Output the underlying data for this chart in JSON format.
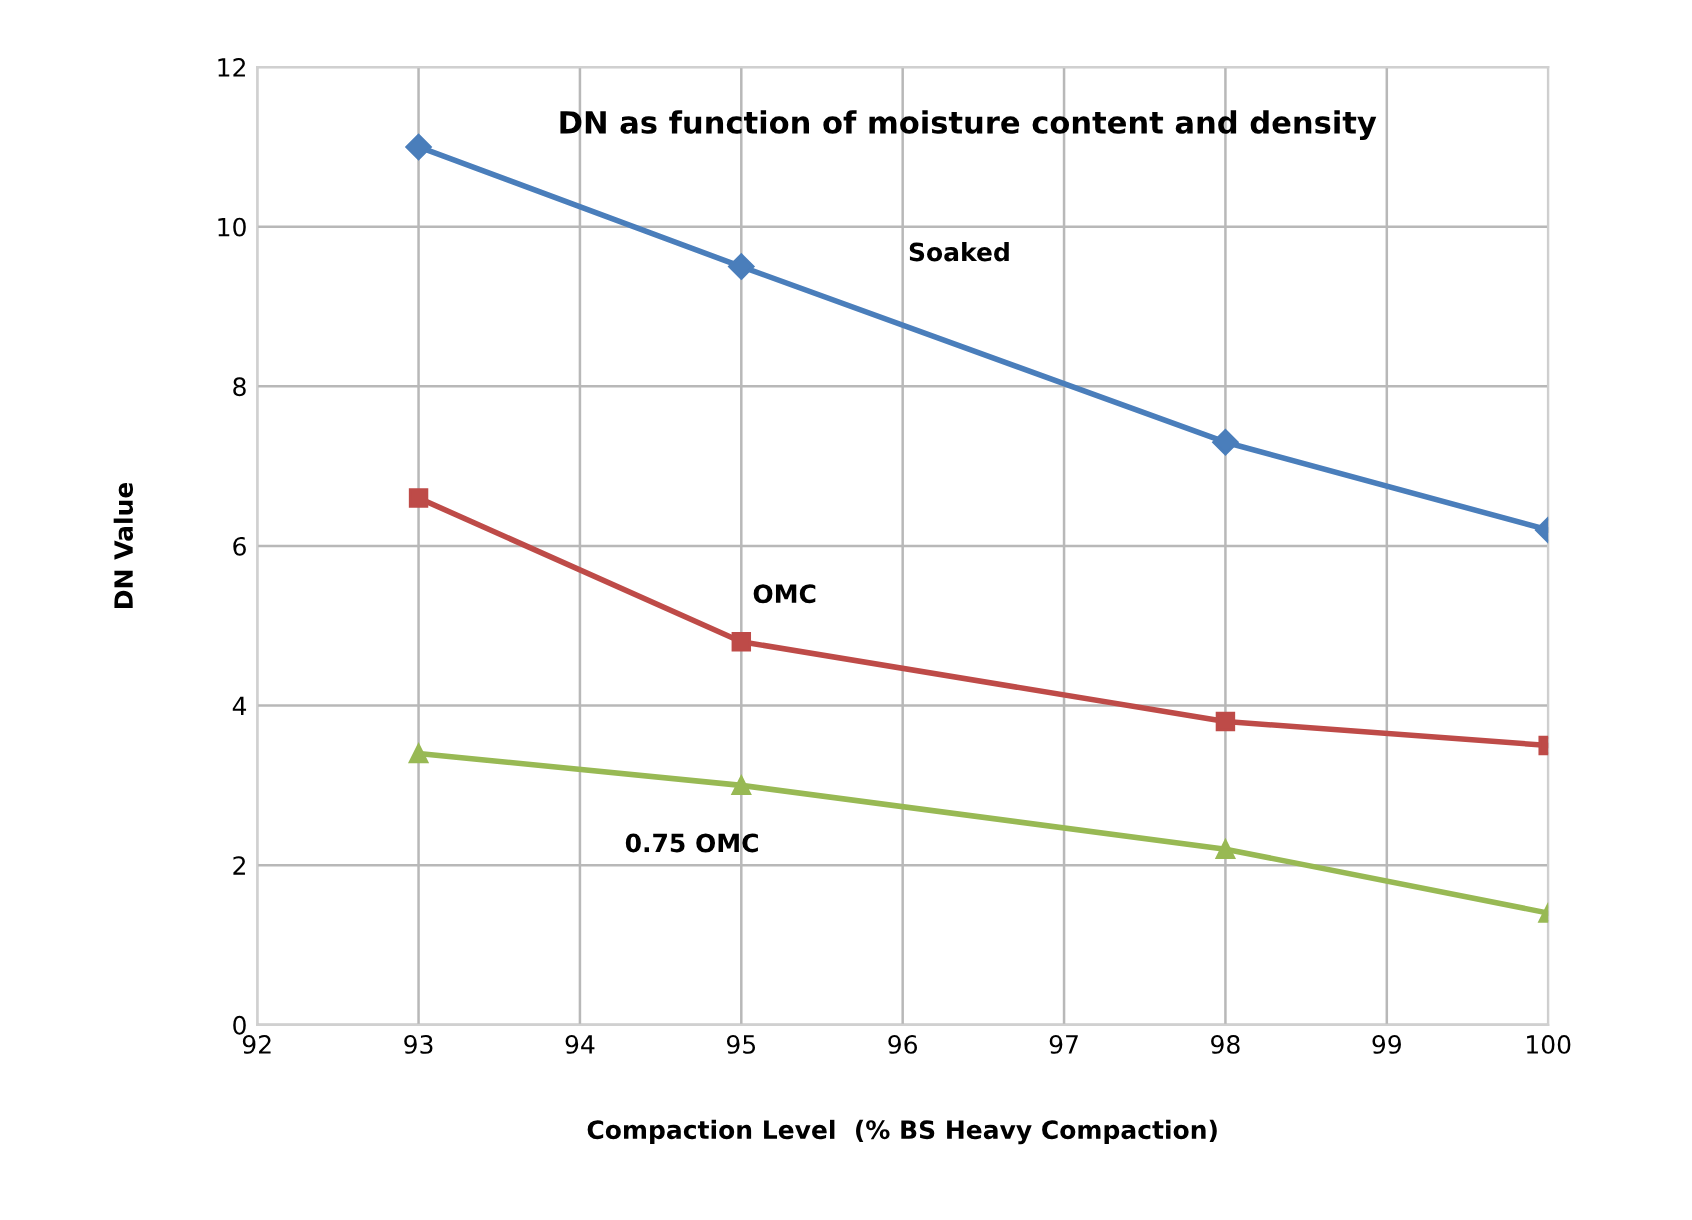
{
  "chart_data": {
    "type": "line",
    "title": "DN as function of moisture content and density",
    "xlabel": "Compaction Level  (% BS Heavy Compaction)",
    "ylabel": "DN Value",
    "x": [
      93,
      95,
      98,
      100
    ],
    "series": [
      {
        "name": "Soaked",
        "color": "#4a7ebb",
        "marker": "diamond",
        "values": [
          11,
          9.5,
          7.3,
          6.2
        ]
      },
      {
        "name": "OMC",
        "color": "#be4b48",
        "marker": "square",
        "values": [
          6.6,
          4.8,
          3.8,
          3.5
        ]
      },
      {
        "name": "0.75 OMC",
        "color": "#98b954",
        "marker": "triangle",
        "values": [
          3.4,
          3.0,
          2.2,
          1.4
        ]
      }
    ],
    "xlim": [
      92,
      100
    ],
    "xticks": [
      92,
      93,
      94,
      95,
      96,
      97,
      98,
      99,
      100
    ],
    "ylim": [
      0,
      12
    ],
    "yticks": [
      0,
      2,
      4,
      6,
      8,
      10,
      12
    ],
    "grid": true,
    "legend": false,
    "line_style": "solid"
  }
}
